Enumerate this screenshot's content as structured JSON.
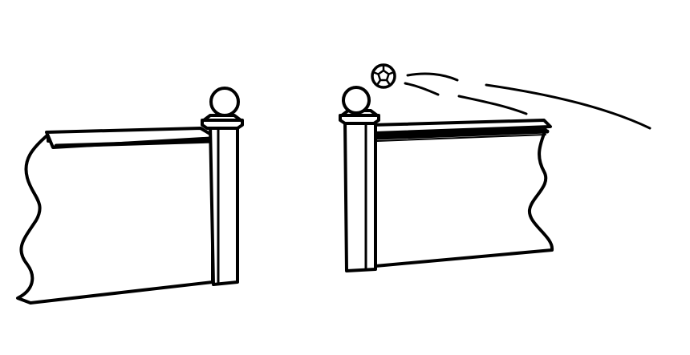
{
  "illustration": {
    "left_wall": {
      "ends": "broken-left",
      "has_post": true,
      "post_cap": "ball-finial"
    },
    "right_wall": {
      "ends": "broken-right",
      "has_post": true,
      "post_cap": "ball-finial"
    },
    "ball": {
      "kind": "soccer-ball",
      "motion": "flying-right",
      "trail_lines": 3
    },
    "colors": {
      "ink": "#000000",
      "background": "#ffffff"
    }
  }
}
